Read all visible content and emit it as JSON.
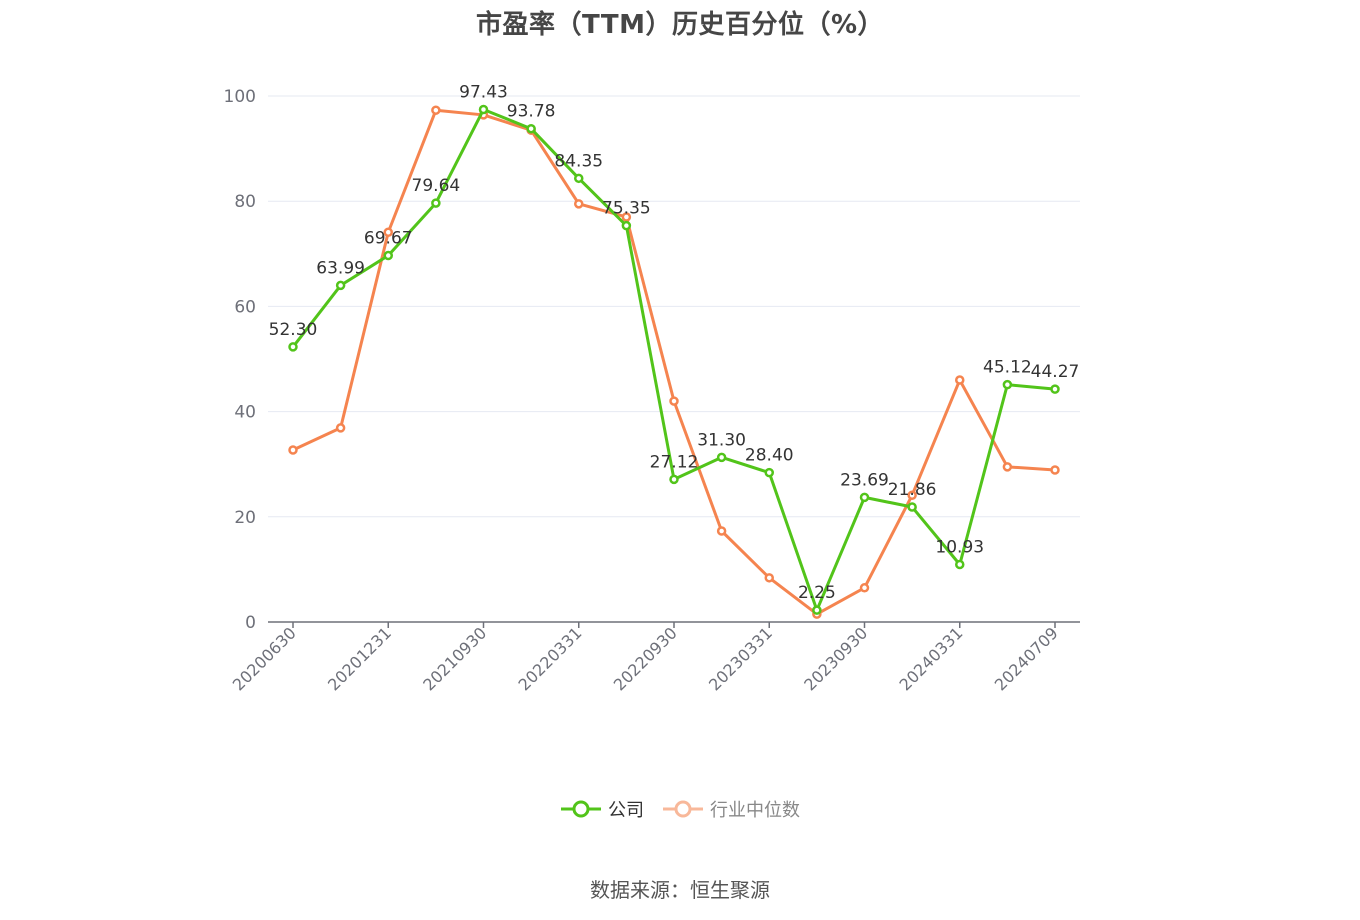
{
  "chart_data": {
    "type": "line",
    "title": "市盈率（TTM）历史百分位（%）",
    "xlabel": "",
    "ylabel": "",
    "ylim": [
      0,
      100
    ],
    "yticks": [
      0,
      20,
      40,
      60,
      80,
      100
    ],
    "grid": true,
    "legend_position": "bottom",
    "x": [
      "20200630",
      "",
      "20201231",
      "",
      "20210930",
      "",
      "20220331",
      "",
      "20220930",
      "",
      "20230331",
      "",
      "20230930",
      "",
      "20240331",
      "",
      "20240709"
    ],
    "xtick_labels": [
      "20200630",
      "20201231",
      "20210930",
      "20220331",
      "20220930",
      "20230331",
      "20230930",
      "20240331",
      "20240709"
    ],
    "series": [
      {
        "name": "公司",
        "color": "#52c41a",
        "values": [
          52.3,
          63.99,
          69.67,
          79.64,
          97.43,
          93.78,
          84.35,
          75.35,
          27.12,
          31.3,
          28.4,
          2.25,
          23.69,
          21.86,
          10.93,
          45.12,
          44.27
        ],
        "labels": [
          "52.30",
          "63.99",
          "69.67",
          "79.64",
          "97.43",
          "93.78",
          "84.35",
          "75.35",
          "27.12",
          "31.30",
          "28.40",
          "2.25",
          "23.69",
          "21.86",
          "10.93",
          "45.12",
          "44.27"
        ]
      },
      {
        "name": "行业中位数",
        "color": "#f5844f",
        "values": [
          32.7,
          36.9,
          74.1,
          97.3,
          96.4,
          93.5,
          79.5,
          77.0,
          42.0,
          17.3,
          8.4,
          1.5,
          6.5,
          24.1,
          46.0,
          29.5,
          28.9
        ]
      }
    ]
  },
  "header": {
    "title": "市盈率（TTM）历史百分位（%）"
  },
  "legend": {
    "company": "公司",
    "industry": "行业中位数"
  },
  "footer": {
    "source": "数据来源：恒生聚源"
  },
  "colors": {
    "company": "#52c41a",
    "industry": "#f5844f",
    "grid": "#e6e9f2",
    "axis": "#6e7079",
    "text": "#333333"
  }
}
